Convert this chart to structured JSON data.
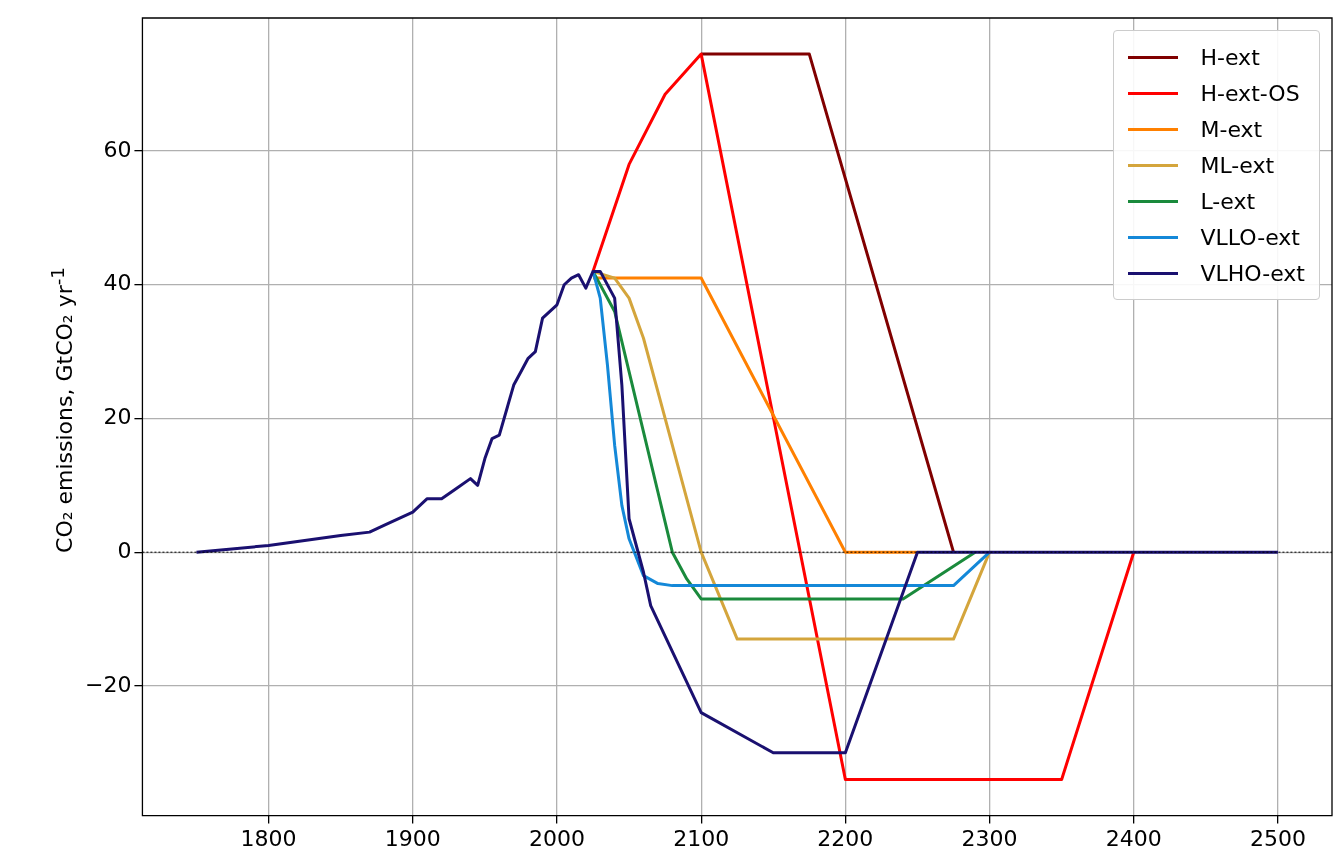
{
  "chart_data": {
    "type": "line",
    "ylabel": "CO₂ emissions, GtCO₂ yr$^{-1}$",
    "xlim": [
      1712.5,
      2537.5
    ],
    "xticks": [
      1800,
      1900,
      2000,
      2100,
      2200,
      2300,
      2400,
      2500
    ],
    "ylim": [
      -39.4,
      79.9
    ],
    "yticks": [
      {
        "value": -20,
        "label": "−20"
      },
      0,
      20,
      40,
      60
    ],
    "grid": true,
    "legend": "top right",
    "marker": "none",
    "line_style": "solid",
    "ref_lines": [
      {
        "axis": "y",
        "value": 0,
        "label": null,
        "color": "#000000",
        "line_style": "dotted"
      }
    ],
    "series": [
      {
        "name": "H-ext",
        "color": "#800000",
        "x": [
          2100,
          2175,
          2275
        ],
        "values": [
          74.5,
          74.5,
          0
        ]
      },
      {
        "name": "H-ext-OS",
        "color": "#ff0000",
        "x": [
          2025,
          2050,
          2075,
          2100,
          2200,
          2350,
          2400
        ],
        "values": [
          42,
          58,
          68.5,
          74.5,
          -34,
          -34,
          0
        ]
      },
      {
        "name": "M-ext",
        "color": "#ff8000",
        "x": [
          2025,
          2100,
          2200,
          2250
        ],
        "values": [
          41,
          41,
          0,
          0
        ]
      },
      {
        "name": "ML-ext",
        "color": "#d4a53c",
        "x": [
          2025,
          2040,
          2050,
          2060,
          2075,
          2100,
          2125,
          2275,
          2300
        ],
        "values": [
          42,
          41,
          38,
          32,
          20,
          0,
          -13,
          -13,
          0
        ]
      },
      {
        "name": "L-ext",
        "color": "#1a8a3c",
        "x": [
          2025,
          2040,
          2050,
          2060,
          2070,
          2080,
          2090,
          2100,
          2240,
          2290
        ],
        "values": [
          42,
          36,
          27,
          18,
          9,
          0,
          -4,
          -7,
          -7,
          0
        ]
      },
      {
        "name": "VLLO-ext",
        "color": "#1488d8",
        "x": [
          2025,
          2030,
          2035,
          2040,
          2045,
          2050,
          2060,
          2070,
          2080,
          2275,
          2300
        ],
        "values": [
          42,
          38,
          28,
          16,
          7,
          2,
          -3.5,
          -4.7,
          -5,
          -5,
          0
        ]
      },
      {
        "name": "VLHO-ext",
        "color": "#1a1070",
        "x": [
          1750,
          1800,
          1850,
          1870,
          1880,
          1900,
          1910,
          1920,
          1930,
          1940,
          1945,
          1950,
          1955,
          1960,
          1970,
          1975,
          1980,
          1985,
          1990,
          2000,
          2005,
          2010,
          2015,
          2020,
          2025,
          2030,
          2040,
          2045,
          2050,
          2060,
          2065,
          2100,
          2150,
          2200,
          2250,
          2500
        ],
        "values": [
          0,
          1,
          2.5,
          3,
          4,
          6,
          8,
          8,
          9.5,
          11,
          10,
          14,
          17,
          17.5,
          25,
          27,
          29,
          30,
          35,
          37,
          40,
          41,
          41.5,
          39.5,
          42,
          42,
          38,
          25,
          5,
          -3,
          -8,
          -24,
          -30,
          -30,
          0,
          0
        ]
      }
    ]
  }
}
